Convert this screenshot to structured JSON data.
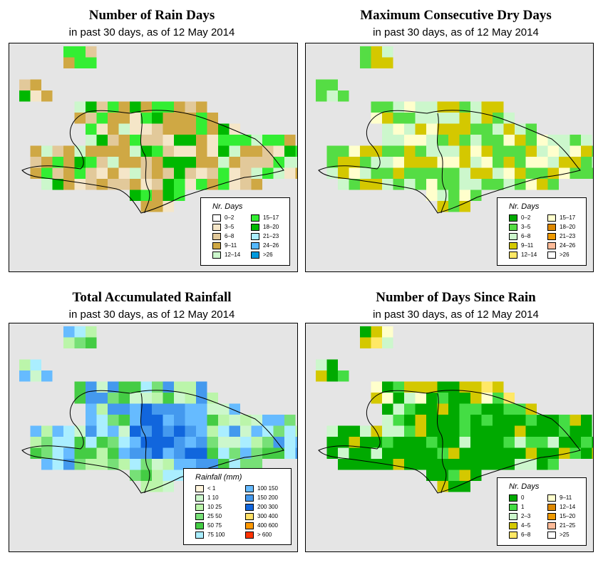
{
  "panels": [
    {
      "id": "rain-days",
      "title": "Number of Rain Days",
      "subtitle": "in past 30 days, as of  12 May 2014",
      "legend": {
        "title": "Nr. Days",
        "entries": [
          {
            "label": "0–2",
            "color": "#ffffff"
          },
          {
            "label": "3–5",
            "color": "#f5e6c8"
          },
          {
            "label": "6–8",
            "color": "#e2c99a"
          },
          {
            "label": "9–11",
            "color": "#cfa844"
          },
          {
            "label": "12–14",
            "color": "#ccf7cc"
          },
          {
            "label": "15–17",
            "color": "#33ee33"
          },
          {
            "label": "18–20",
            "color": "#00b800"
          },
          {
            "label": "21–23",
            "color": "#aaeeff"
          },
          {
            "label": "24–26",
            "color": "#55b8ff"
          },
          {
            "label": ">26",
            "color": "#0099dd"
          }
        ]
      }
    },
    {
      "id": "dry-days",
      "title": "Maximum Consecutive Dry Days",
      "subtitle": "in past 30 days, as of  12 May 2014",
      "legend": {
        "title": "Nr. Days",
        "entries": [
          {
            "label": "0–2",
            "color": "#00aa00"
          },
          {
            "label": "3–5",
            "color": "#55dd44"
          },
          {
            "label": "6–8",
            "color": "#ccf7cc"
          },
          {
            "label": "9–11",
            "color": "#d4c800"
          },
          {
            "label": "12–14",
            "color": "#ffe866"
          },
          {
            "label": "15–17",
            "color": "#ffffcc"
          },
          {
            "label": "18–20",
            "color": "#dd8800"
          },
          {
            "label": "21–23",
            "color": "#ee9900"
          },
          {
            "label": "24–26",
            "color": "#ffbb99"
          },
          {
            "label": ">26",
            "color": "#ffffff"
          }
        ]
      }
    },
    {
      "id": "rainfall",
      "title": "Total Accumulated Rainfall",
      "subtitle": "in past 30 days, as of  12 May 2014",
      "legend": {
        "title": "Rainfall (mm)",
        "entries": [
          {
            "label": "< 1",
            "color": "#fff5dd"
          },
          {
            "label": "1    10",
            "color": "#ccf7cc"
          },
          {
            "label": "10   25",
            "color": "#bbf5aa"
          },
          {
            "label": "25   50",
            "color": "#77e077"
          },
          {
            "label": "50   75",
            "color": "#44cc44"
          },
          {
            "label": "75  100",
            "color": "#aaeeff"
          },
          {
            "label": "100  150",
            "color": "#66bbff"
          },
          {
            "label": "150  200",
            "color": "#4499ee"
          },
          {
            "label": "200  300",
            "color": "#1166dd"
          },
          {
            "label": "300  400",
            "color": "#ffe066"
          },
          {
            "label": "400  600",
            "color": "#ff9900"
          },
          {
            "label": "> 600",
            "color": "#ff3300"
          }
        ]
      }
    },
    {
      "id": "days-since",
      "title": "Number of Days Since Rain",
      "subtitle": "in past 30 days, as of  12 May 2014",
      "legend": {
        "title": "Nr. Days",
        "entries": [
          {
            "label": "0",
            "color": "#00aa00"
          },
          {
            "label": "1",
            "color": "#44dd44"
          },
          {
            "label": "2–3",
            "color": "#ccf7cc"
          },
          {
            "label": "4–5",
            "color": "#d4c800"
          },
          {
            "label": "6–8",
            "color": "#ffe866"
          },
          {
            "label": "9–11",
            "color": "#ffffcc"
          },
          {
            "label": "12–14",
            "color": "#dd8800"
          },
          {
            "label": "15–20",
            "color": "#ee9900"
          },
          {
            "label": "21–25",
            "color": "#ffbb99"
          },
          {
            "label": ">25",
            "color": "#ffffff"
          }
        ]
      }
    }
  ]
}
